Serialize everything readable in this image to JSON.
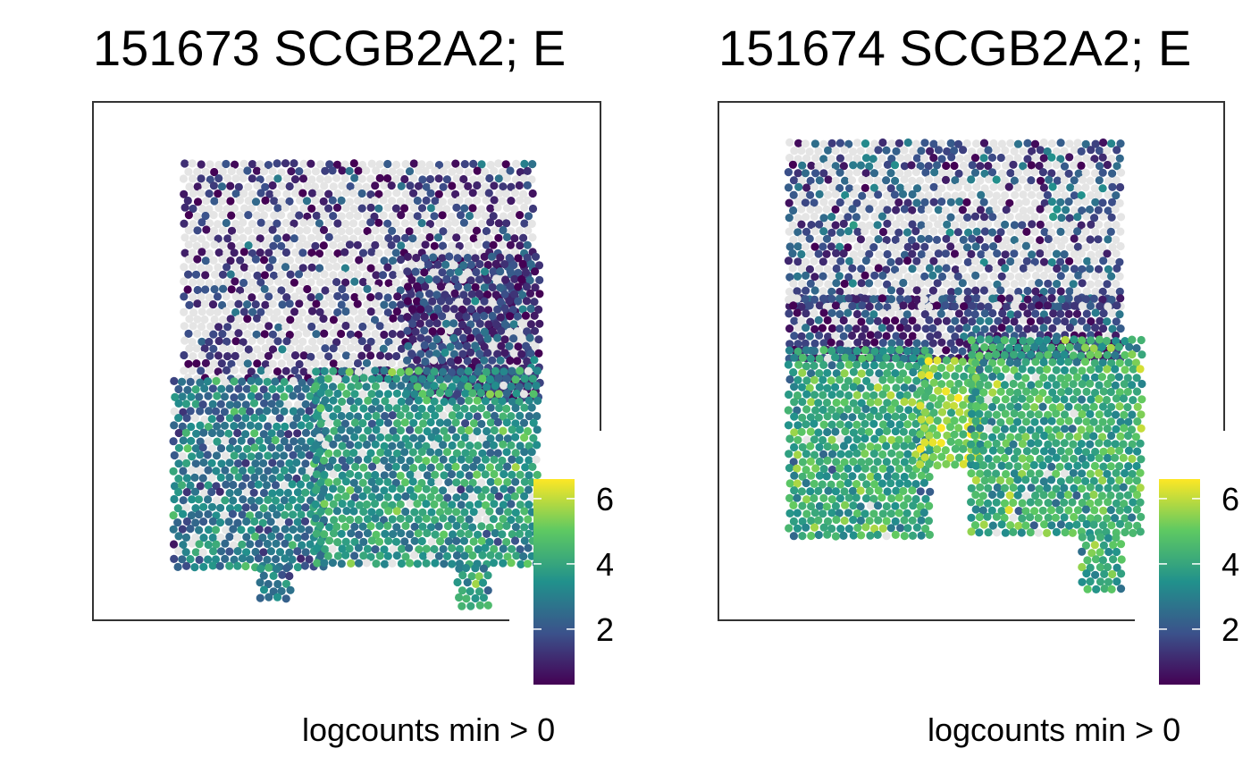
{
  "chart_data": [
    {
      "type": "scatter",
      "title": "151673 SCGB2A2; E",
      "xlabel": "",
      "ylabel": "",
      "axes": "none",
      "grid": false,
      "frame": "partial box",
      "na_color": "#e5e5e5",
      "color_scale": {
        "name": "viridis",
        "title": "logcounts min > 0",
        "range": [
          0.3,
          6.6
        ],
        "ticks": [
          2,
          4,
          6
        ],
        "stops": [
          "#440154",
          "#3b528b",
          "#21918c",
          "#5ec962",
          "#fde725"
        ]
      },
      "legend_position": "bottom-right",
      "regions": [
        {
          "name": "top cortex",
          "x": [
            0.18,
            0.87
          ],
          "y": [
            0.46,
            0.88
          ],
          "mean_value": 1.3,
          "missing_fraction": 0.55
        },
        {
          "name": "upper-right band",
          "x": [
            0.62,
            0.88
          ],
          "y": [
            0.42,
            0.7
          ],
          "mean_value": 1.5,
          "missing_fraction": 0.12
        },
        {
          "name": "lower-left block",
          "x": [
            0.16,
            0.46
          ],
          "y": [
            0.1,
            0.46
          ],
          "mean_value": 2.9,
          "missing_fraction": 0.08
        },
        {
          "name": "lower-center block",
          "x": [
            0.44,
            0.88
          ],
          "y": [
            0.1,
            0.48
          ],
          "mean_value": 3.6,
          "missing_fraction": 0.05
        },
        {
          "name": "bottom notch",
          "x": [
            0.33,
            0.39
          ],
          "y": [
            0.04,
            0.1
          ],
          "mean_value": 2.6,
          "missing_fraction": 0.0
        },
        {
          "name": "tail",
          "x": [
            0.72,
            0.78
          ],
          "y": [
            0.02,
            0.1
          ],
          "mean_value": 3.8,
          "missing_fraction": 0.0
        }
      ]
    },
    {
      "type": "scatter",
      "title": "151674 SCGB2A2; E",
      "xlabel": "",
      "ylabel": "",
      "axes": "none",
      "grid": false,
      "frame": "partial box",
      "na_color": "#e5e5e5",
      "color_scale": {
        "name": "viridis",
        "title": "logcounts min > 0",
        "range": [
          0.3,
          6.6
        ],
        "ticks": [
          2,
          4,
          6
        ],
        "stops": [
          "#440154",
          "#3b528b",
          "#21918c",
          "#5ec962",
          "#fde725"
        ]
      },
      "legend_position": "bottom-right",
      "regions": [
        {
          "name": "top cortex",
          "x": [
            0.14,
            0.8
          ],
          "y": [
            0.6,
            0.92
          ],
          "mean_value": 1.8,
          "missing_fraction": 0.45
        },
        {
          "name": "upper band",
          "x": [
            0.14,
            0.8
          ],
          "y": [
            0.5,
            0.62
          ],
          "mean_value": 1.4,
          "missing_fraction": 0.15
        },
        {
          "name": "lower-left block",
          "x": [
            0.14,
            0.42
          ],
          "y": [
            0.16,
            0.52
          ],
          "mean_value": 4.0,
          "missing_fraction": 0.02
        },
        {
          "name": "center hotspot",
          "x": [
            0.4,
            0.52
          ],
          "y": [
            0.3,
            0.5
          ],
          "mean_value": 5.3,
          "missing_fraction": 0.0
        },
        {
          "name": "lower-right block",
          "x": [
            0.5,
            0.84
          ],
          "y": [
            0.16,
            0.54
          ],
          "mean_value": 4.2,
          "missing_fraction": 0.02
        },
        {
          "name": "tail",
          "x": [
            0.72,
            0.8
          ],
          "y": [
            0.06,
            0.16
          ],
          "mean_value": 4.3,
          "missing_fraction": 0.0
        }
      ]
    }
  ]
}
